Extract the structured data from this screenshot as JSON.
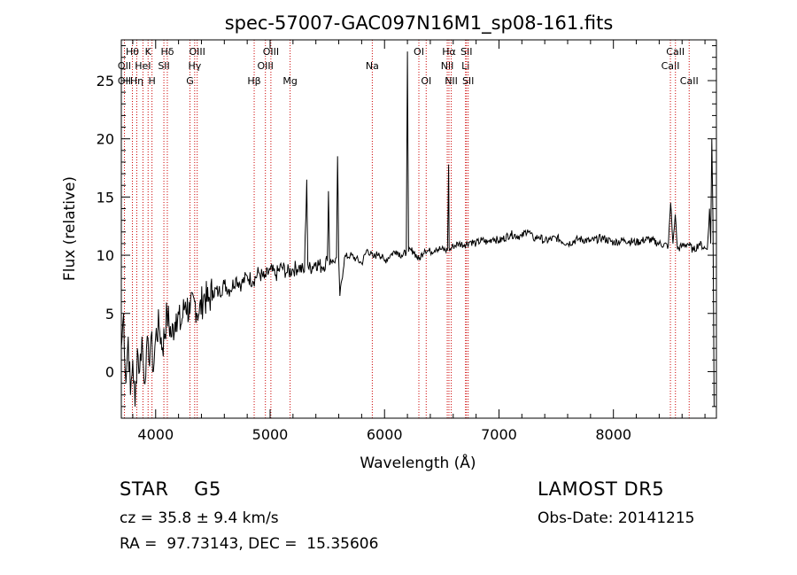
{
  "chart_data": {
    "type": "line",
    "title": "spec-57007-GAC097N16M1_sp08-161.fits",
    "xlabel": "Wavelength (Å)",
    "ylabel": "Flux (relative)",
    "xlim": [
      3700,
      8900
    ],
    "ylim": [
      -4,
      28.5
    ],
    "xticks": [
      4000,
      5000,
      6000,
      7000,
      8000
    ],
    "yticks": [
      0,
      5,
      10,
      15,
      20,
      25
    ],
    "grid": false,
    "line_color": "#000000",
    "line_marker_color": "#cc0000",
    "series": [
      {
        "x": [
          3700,
          3720,
          3740,
          3760,
          3780,
          3800,
          3820,
          3840,
          3860,
          3880,
          3900,
          3920,
          3940,
          3960,
          3980,
          4000,
          4030,
          4060,
          4100,
          4140,
          4180,
          4220,
          4260,
          4300,
          4340,
          4380,
          4420,
          4460,
          4500,
          4550,
          4600,
          4650,
          4700,
          4750,
          4800,
          4850,
          4900,
          4950,
          5000,
          5050,
          5100,
          5150,
          5200,
          5250,
          5300,
          5320,
          5330,
          5340,
          5400,
          5450,
          5500,
          5510,
          5520,
          5530,
          5560,
          5580,
          5590,
          5600,
          5610,
          5650,
          5700,
          5750,
          5800,
          5850,
          5900,
          5950,
          6000,
          6050,
          6100,
          6150,
          6190,
          6200,
          6210,
          6250,
          6300,
          6350,
          6400,
          6450,
          6500,
          6550,
          6560,
          6565,
          6570,
          6600,
          6650,
          6700,
          6750,
          6800,
          6850,
          6900,
          6950,
          7000,
          7100,
          7200,
          7250,
          7300,
          7350,
          7400,
          7500,
          7600,
          7700,
          7800,
          7900,
          8000,
          8100,
          8200,
          8300,
          8400,
          8480,
          8500,
          8520,
          8540,
          8560,
          8600,
          8650,
          8700,
          8750,
          8800,
          8820,
          8840,
          8850,
          8860,
          8870,
          8880
        ],
        "y": [
          2,
          5,
          -1,
          3,
          -2,
          1,
          -3,
          2,
          0,
          3,
          -1,
          2,
          1,
          3,
          0,
          3,
          4,
          2,
          5,
          3,
          5,
          4,
          6,
          5,
          6,
          5,
          6.5,
          6,
          7,
          6.8,
          7.5,
          7,
          8,
          7.5,
          8.2,
          7.8,
          8.5,
          8,
          8.7,
          8.3,
          9,
          8.5,
          8.8,
          9,
          8.6,
          16.5,
          9.2,
          8.8,
          9.4,
          9,
          9.5,
          15.5,
          9.2,
          9.6,
          9.4,
          9.8,
          18.5,
          9.6,
          6.5,
          9.8,
          10,
          9.7,
          9.3,
          10.5,
          9.8,
          10.2,
          9.5,
          10,
          10.4,
          10,
          10.2,
          27.5,
          10.3,
          10.4,
          9.6,
          10.5,
          10.3,
          10.6,
          10.5,
          10.4,
          17.8,
          10.6,
          10.4,
          10.8,
          11,
          10.9,
          11.2,
          11,
          11.3,
          11.1,
          11.5,
          11.2,
          11.8,
          11.6,
          12.2,
          11.4,
          11.6,
          11.2,
          11.5,
          11,
          11.4,
          11.2,
          11.5,
          11.1,
          11.3,
          11.1,
          11.4,
          11,
          10.8,
          14.5,
          11,
          13.5,
          10.5,
          10.8,
          11,
          10.4,
          11,
          10.6,
          10.5,
          14,
          11,
          20,
          13,
          -3
        ]
      }
    ],
    "line_markers": [
      {
        "x": 3797,
        "label": "Hθ",
        "row": 1
      },
      {
        "x": 3727,
        "label": "OII",
        "row": 2
      },
      {
        "x": 3727,
        "label": "OII",
        "row": 3
      },
      {
        "x": 3835,
        "label": "Hη",
        "row": 3
      },
      {
        "x": 3889,
        "label": "HeI",
        "row": 2
      },
      {
        "x": 3934,
        "label": "K",
        "row": 1
      },
      {
        "x": 3968,
        "label": "H",
        "row": 3
      },
      {
        "x": 4072,
        "label": "SII",
        "row": 2
      },
      {
        "x": 4102,
        "label": "Hδ",
        "row": 1
      },
      {
        "x": 4300,
        "label": "G",
        "row": 3
      },
      {
        "x": 4341,
        "label": "Hγ",
        "row": 2
      },
      {
        "x": 4363,
        "label": "OIII",
        "row": 1
      },
      {
        "x": 4861,
        "label": "Hβ",
        "row": 3
      },
      {
        "x": 4959,
        "label": "OIII",
        "row": 2
      },
      {
        "x": 5007,
        "label": "OIII",
        "row": 1
      },
      {
        "x": 5175,
        "label": "Mg",
        "row": 3
      },
      {
        "x": 5893,
        "label": "Na",
        "row": 2
      },
      {
        "x": 6300,
        "label": "OI",
        "row": 1
      },
      {
        "x": 6364,
        "label": "OI",
        "row": 3
      },
      {
        "x": 6548,
        "label": "NII",
        "row": 2
      },
      {
        "x": 6563,
        "label": "Hα",
        "row": 1
      },
      {
        "x": 6583,
        "label": "NII",
        "row": 3
      },
      {
        "x": 6708,
        "label": "Li",
        "row": 2
      },
      {
        "x": 6716,
        "label": "SII",
        "row": 1
      },
      {
        "x": 6731,
        "label": "SII",
        "row": 3
      },
      {
        "x": 8498,
        "label": "CaII",
        "row": 2
      },
      {
        "x": 8542,
        "label": "CaII",
        "row": 1
      },
      {
        "x": 8662,
        "label": "CaII",
        "row": 3
      }
    ]
  },
  "info": {
    "classification": "STAR    G5",
    "redshift": "cz = 35.8 ± 9.4 km/s",
    "coordinates": "RA =  97.73143, DEC =  15.35606",
    "survey": "LAMOST DR5",
    "obs_date": "Obs-Date: 20141215"
  }
}
